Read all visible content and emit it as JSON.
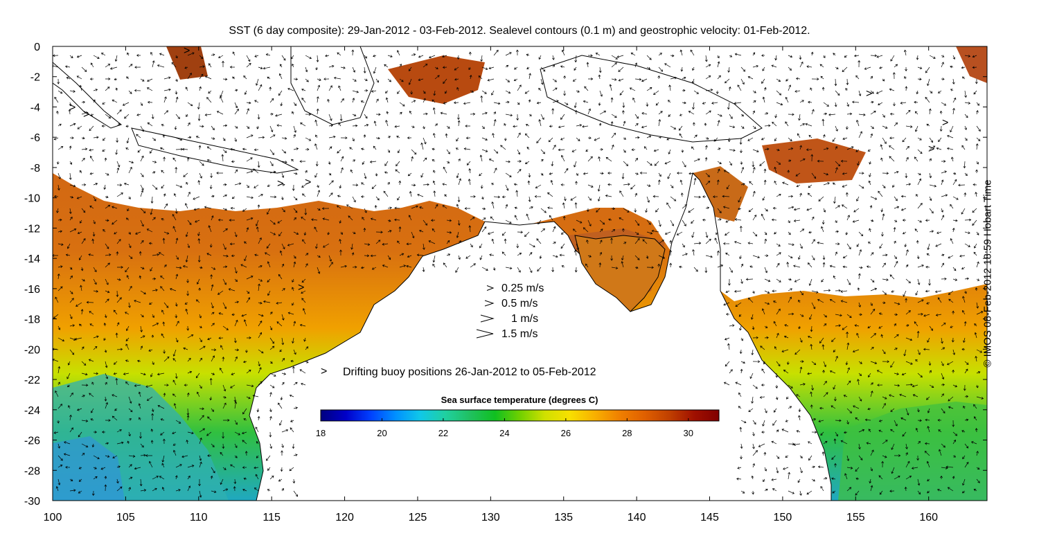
{
  "title": "SST (6 day composite): 29-Jan-2012 - 03-Feb-2012. Sealevel contours (0.1 m) and geostrophic velocity: 01-Feb-2012.",
  "credit": "© IMOS 08-Feb-2012 18:59 Hobart Time",
  "axes": {
    "x_ticks": [
      "100",
      "105",
      "110",
      "115",
      "120",
      "125",
      "130",
      "135",
      "140",
      "145",
      "150",
      "155",
      "160"
    ],
    "y_ticks": [
      "0",
      "-2",
      "-4",
      "-6",
      "-8",
      "-10",
      "-12",
      "-14",
      "-16",
      "-18",
      "-20",
      "-22",
      "-24",
      "-26",
      "-28",
      "-30"
    ],
    "xlim": [
      100,
      164
    ],
    "ylim": [
      -30,
      0
    ]
  },
  "velocity_legend": [
    {
      "label": "0.25 m/s",
      "speed": 0.25
    },
    {
      "label": "0.5 m/s",
      "speed": 0.5
    },
    {
      "label": "1 m/s",
      "speed": 1
    },
    {
      "label": "1.5 m/s",
      "speed": 1.5
    }
  ],
  "buoy_legend": {
    "symbol": ">",
    "label": "Drifting buoy positions 26-Jan-2012 to 05-Feb-2012",
    "color": "#e040e0"
  },
  "colorbar": {
    "title": "Sea surface temperature (degrees C)",
    "range": [
      18,
      31
    ],
    "tick_labels": [
      "18",
      "20",
      "22",
      "24",
      "26",
      "28",
      "30"
    ],
    "colors": [
      "#00007f",
      "#0000c8",
      "#0040ff",
      "#0090ff",
      "#10c8e8",
      "#20d0a0",
      "#20c060",
      "#10c020",
      "#70d000",
      "#d0e000",
      "#f8e000",
      "#f8b000",
      "#f08000",
      "#e06000",
      "#c04000",
      "#a01000",
      "#800000"
    ]
  },
  "colors": {
    "land": "#ffffff",
    "coast": "#000000",
    "contour": "#ffffff"
  }
}
